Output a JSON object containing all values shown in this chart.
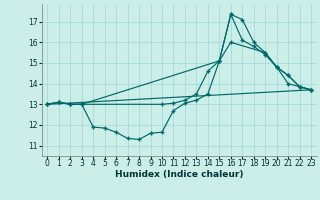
{
  "xlabel": "Humidex (Indice chaleur)",
  "background_color": "#cceee8",
  "grid_color": "#aaddda",
  "line_color": "#006868",
  "xlim": [
    -0.5,
    23.5
  ],
  "ylim": [
    10.5,
    17.85
  ],
  "xticks": [
    0,
    1,
    2,
    3,
    4,
    5,
    6,
    7,
    8,
    9,
    10,
    11,
    12,
    13,
    14,
    15,
    16,
    17,
    18,
    19,
    20,
    21,
    22,
    23
  ],
  "yticks": [
    11,
    12,
    13,
    14,
    15,
    16,
    17
  ],
  "series1_x": [
    0,
    1,
    2,
    3,
    10,
    11,
    12,
    13,
    14,
    15,
    16,
    17,
    18,
    19,
    20,
    21,
    22,
    23
  ],
  "series1_y": [
    13.0,
    13.1,
    13.0,
    13.0,
    13.0,
    13.05,
    13.2,
    13.5,
    14.6,
    15.1,
    17.35,
    17.1,
    16.0,
    15.5,
    14.8,
    14.0,
    13.85,
    13.7
  ],
  "series2_x": [
    0,
    1,
    2,
    3,
    4,
    5,
    6,
    7,
    8,
    9,
    10,
    11,
    12,
    13,
    14,
    15,
    16,
    17,
    18,
    19,
    20,
    21,
    22,
    23
  ],
  "series2_y": [
    13.0,
    13.1,
    13.0,
    13.0,
    11.9,
    11.85,
    11.65,
    11.35,
    11.3,
    11.6,
    11.65,
    12.7,
    13.05,
    13.2,
    13.5,
    15.1,
    17.35,
    16.1,
    15.8,
    15.4,
    14.8,
    14.4,
    13.85,
    13.7
  ],
  "series3_x": [
    0,
    1,
    2,
    3,
    15,
    16,
    19,
    20,
    21,
    22,
    23
  ],
  "series3_y": [
    13.0,
    13.1,
    13.0,
    13.0,
    15.1,
    16.0,
    15.5,
    14.8,
    14.4,
    13.85,
    13.7
  ]
}
